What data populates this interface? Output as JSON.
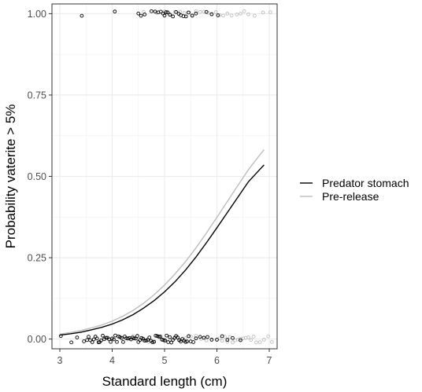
{
  "chart_data": {
    "type": "scatter",
    "xlabel": "Standard length (cm)",
    "ylabel": "Probability vaterite > 5%",
    "xlim": [
      2.85,
      7.15
    ],
    "ylim": [
      -0.03,
      1.03
    ],
    "x_ticks": [
      3,
      4,
      5,
      6,
      7
    ],
    "x_tick_labels": [
      "3",
      "4",
      "5",
      "6",
      "7"
    ],
    "y_ticks": [
      0,
      0.25,
      0.5,
      0.75,
      1.0
    ],
    "y_tick_labels": [
      "0.00",
      "0.25",
      "0.50",
      "0.75",
      "1.00"
    ],
    "grid": true,
    "legend": {
      "position": "right",
      "entries": [
        "Predator stomach",
        "Pre-release"
      ]
    },
    "series": [
      {
        "name": "Predator stomach",
        "color": "#000000",
        "curve": {
          "x": [
            3.0,
            3.2,
            3.4,
            3.6,
            3.8,
            4.0,
            4.2,
            4.4,
            4.6,
            4.8,
            5.0,
            5.2,
            5.4,
            5.6,
            5.8,
            6.0,
            6.2,
            6.4,
            6.6,
            6.8,
            6.9
          ],
          "y": [
            0.012,
            0.016,
            0.021,
            0.028,
            0.036,
            0.046,
            0.059,
            0.075,
            0.095,
            0.118,
            0.145,
            0.176,
            0.212,
            0.252,
            0.296,
            0.342,
            0.389,
            0.436,
            0.483,
            0.518,
            0.535
          ]
        },
        "points_at_1": [
          3.42,
          4.05,
          4.5,
          4.55,
          4.62,
          4.75,
          4.82,
          4.88,
          4.93,
          4.97,
          5.0,
          5.03,
          5.06,
          5.1,
          5.16,
          5.22,
          5.27,
          5.31,
          5.36,
          5.41,
          5.46,
          5.53,
          5.6,
          5.8,
          5.9,
          6.02
        ],
        "points_at_0": [
          3.02,
          3.22,
          3.33,
          3.46,
          3.52,
          3.55,
          3.58,
          3.62,
          3.65,
          3.68,
          3.71,
          3.74,
          3.76,
          3.79,
          3.82,
          3.85,
          3.88,
          3.91,
          3.94,
          3.97,
          4.0,
          4.03,
          4.06,
          4.09,
          4.12,
          4.15,
          4.18,
          4.21,
          4.24,
          4.27,
          4.3,
          4.33,
          4.36,
          4.39,
          4.42,
          4.45,
          4.48,
          4.5,
          4.53,
          4.56,
          4.59,
          4.62,
          4.65,
          4.68,
          4.71,
          4.74,
          4.77,
          4.8,
          4.83,
          4.86,
          4.89,
          4.92,
          4.95,
          4.98,
          5.01,
          5.04,
          5.07,
          5.1,
          5.13,
          5.16,
          5.19,
          5.22,
          5.25,
          5.28,
          5.31,
          5.34,
          5.37,
          5.4,
          5.43,
          5.46,
          5.5,
          5.55,
          5.6,
          5.68,
          5.75,
          5.82,
          5.9,
          6.0,
          6.1,
          6.2,
          6.3,
          6.45
        ]
      },
      {
        "name": "Pre-release",
        "color": "#bdbdbd",
        "curve": {
          "x": [
            3.0,
            3.2,
            3.4,
            3.6,
            3.8,
            4.0,
            4.2,
            4.4,
            4.6,
            4.8,
            5.0,
            5.2,
            5.4,
            5.6,
            5.8,
            6.0,
            6.2,
            6.4,
            6.6,
            6.8,
            6.9
          ],
          "y": [
            0.015,
            0.02,
            0.026,
            0.034,
            0.043,
            0.055,
            0.07,
            0.088,
            0.11,
            0.136,
            0.166,
            0.2,
            0.238,
            0.28,
            0.326,
            0.374,
            0.423,
            0.472,
            0.52,
            0.562,
            0.582
          ]
        },
        "points_at_1": [
          4.6,
          4.85,
          5.0,
          5.12,
          5.2,
          5.3,
          5.38,
          5.45,
          5.52,
          5.6,
          5.68,
          5.75,
          5.83,
          5.9,
          5.98,
          6.05,
          6.12,
          6.2,
          6.28,
          6.38,
          6.45,
          6.52,
          6.6,
          6.72,
          6.88,
          7.02
        ],
        "points_at_0": [
          4.2,
          4.4,
          4.6,
          4.7,
          4.8,
          4.9,
          5.0,
          5.1,
          5.2,
          5.3,
          5.4,
          5.5,
          5.6,
          5.7,
          5.8,
          5.9,
          6.0,
          6.05,
          6.1,
          6.15,
          6.2,
          6.25,
          6.3,
          6.35,
          6.4,
          6.45,
          6.5,
          6.55,
          6.6,
          6.65,
          6.7,
          6.75,
          6.82,
          6.9,
          6.98,
          7.05
        ]
      }
    ]
  }
}
